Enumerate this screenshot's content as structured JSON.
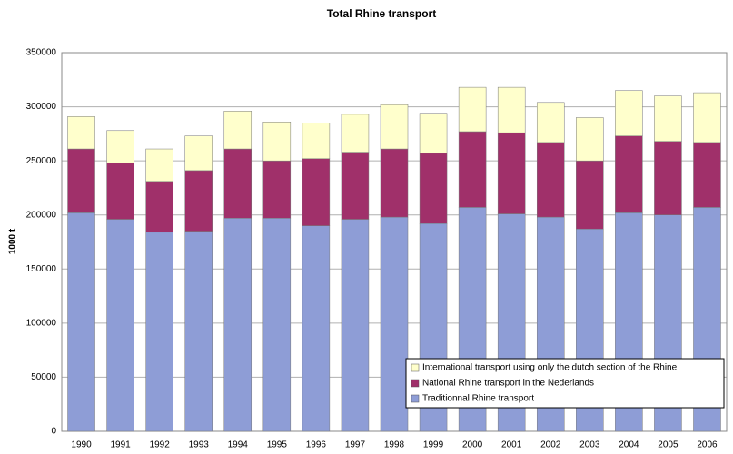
{
  "chart_data": {
    "type": "stacked-bar",
    "title": "Total Rhine transport",
    "y_label": "1000 t",
    "categories": [
      "1990",
      "1991",
      "1992",
      "1993",
      "1994",
      "1995",
      "1996",
      "1997",
      "1998",
      "1999",
      "2000",
      "2001",
      "2002",
      "2003",
      "2004",
      "2005",
      "2006"
    ],
    "series": [
      {
        "name": "Traditionnal Rhine transport",
        "color": "#8e9dd6",
        "values": [
          202000,
          196000,
          184000,
          185000,
          197000,
          197000,
          190000,
          196000,
          198000,
          192000,
          207000,
          201000,
          198000,
          187000,
          202000,
          200000,
          207000
        ]
      },
      {
        "name": "National Rhine transport in the Nederlands",
        "color": "#a0306a",
        "values": [
          59000,
          52000,
          47000,
          56000,
          64000,
          53000,
          62000,
          62000,
          63000,
          65000,
          70000,
          75000,
          69000,
          63000,
          71000,
          68000,
          60000
        ]
      },
      {
        "name": "International transport using only the dutch section of the Rhine",
        "color": "#ffffcc",
        "values": [
          30000,
          30000,
          30000,
          32000,
          35000,
          36000,
          33000,
          35000,
          41000,
          37000,
          41000,
          42000,
          37000,
          40000,
          42000,
          42000,
          46000
        ]
      }
    ],
    "ylim": [
      0,
      350000
    ],
    "yticks": [
      0,
      50000,
      100000,
      150000,
      200000,
      250000,
      300000,
      350000
    ],
    "grid": true,
    "legend": "lower-right"
  }
}
